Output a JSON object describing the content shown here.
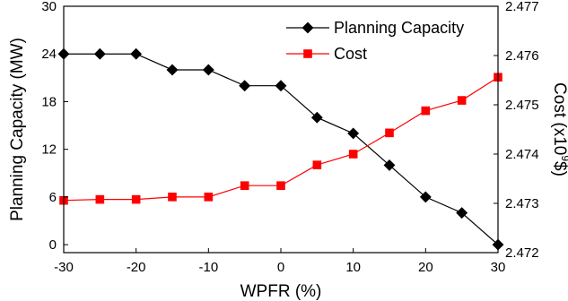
{
  "chart_data": {
    "type": "line",
    "xlabel": "WPFR (%)",
    "ylabel_left": "Planning Capacity (MW)",
    "ylabel_right": "Cost (x10",
    "ylabel_right_superscript": "9",
    "ylabel_right_suffix": "$)",
    "x": [
      -30,
      -25,
      -20,
      -15,
      -10,
      -5,
      0,
      5,
      10,
      15,
      20,
      25,
      30
    ],
    "xlim": [
      -30,
      30
    ],
    "xticks": [
      -30,
      -20,
      -10,
      0,
      10,
      20,
      30
    ],
    "ylim_left": [
      -1,
      30
    ],
    "yticks_left": [
      0,
      6,
      12,
      18,
      24,
      30
    ],
    "ylim_right": [
      2.472,
      2.477
    ],
    "yticks_right": [
      2.472,
      2.473,
      2.474,
      2.475,
      2.476,
      2.477
    ],
    "grid": false,
    "legend_position": "top-right",
    "series": [
      {
        "name": "Planning Capacity",
        "axis": "left",
        "color": "#000000",
        "marker": "diamond",
        "values": [
          24,
          24,
          24,
          22,
          22,
          20,
          20,
          16,
          14,
          10,
          6,
          4,
          0
        ]
      },
      {
        "name": "Cost",
        "axis": "right",
        "color": "#ff0000",
        "marker": "square",
        "values": [
          2.47306,
          2.47308,
          2.47308,
          2.47313,
          2.47313,
          2.47336,
          2.47336,
          2.47378,
          2.474,
          2.47443,
          2.47488,
          2.47509,
          2.47556
        ]
      }
    ]
  }
}
